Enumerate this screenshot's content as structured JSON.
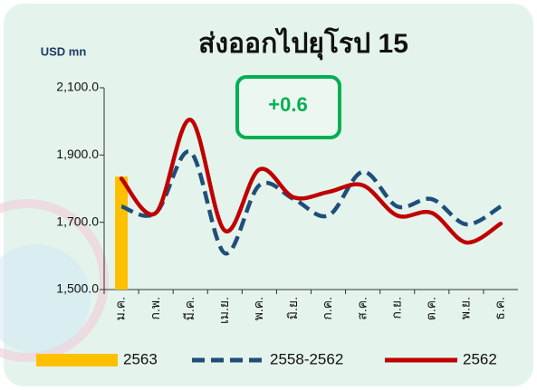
{
  "chart_data": {
    "type": "line",
    "title": "ส่งออกไปยุโรป 15",
    "y_label": "USD mn",
    "annotation": "+0.6",
    "categories": [
      "ม.ค.",
      "ก.พ.",
      "มี.ค.",
      "เม.ย.",
      "พ.ค.",
      "มิ.ย.",
      "ก.ค.",
      "ส.ค.",
      "ก.ย.",
      "ต.ค.",
      "พ.ย.",
      "ธ.ค."
    ],
    "series": [
      {
        "name": "2563",
        "type": "bar",
        "color": "#ffc000",
        "values": [
          1836,
          null,
          null,
          null,
          null,
          null,
          null,
          null,
          null,
          null,
          null,
          null
        ]
      },
      {
        "name": "2558-2562",
        "type": "line",
        "dashed": true,
        "color": "#1f4e79",
        "values": [
          1747,
          1728,
          1909,
          1608,
          1810,
          1769,
          1720,
          1850,
          1747,
          1769,
          1694,
          1747
        ]
      },
      {
        "name": "2562",
        "type": "line",
        "color": "#c00000",
        "values": [
          1830,
          1728,
          2005,
          1675,
          1857,
          1774,
          1790,
          1810,
          1720,
          1728,
          1640,
          1696
        ]
      }
    ],
    "ylim": [
      1500,
      2100
    ],
    "yticks": [
      {
        "value": 1500,
        "label": "1,500.0"
      },
      {
        "value": 1700,
        "label": "1,700.0"
      },
      {
        "value": 1900,
        "label": "1,900.0"
      },
      {
        "value": 2100,
        "label": "2,100.0"
      }
    ]
  }
}
